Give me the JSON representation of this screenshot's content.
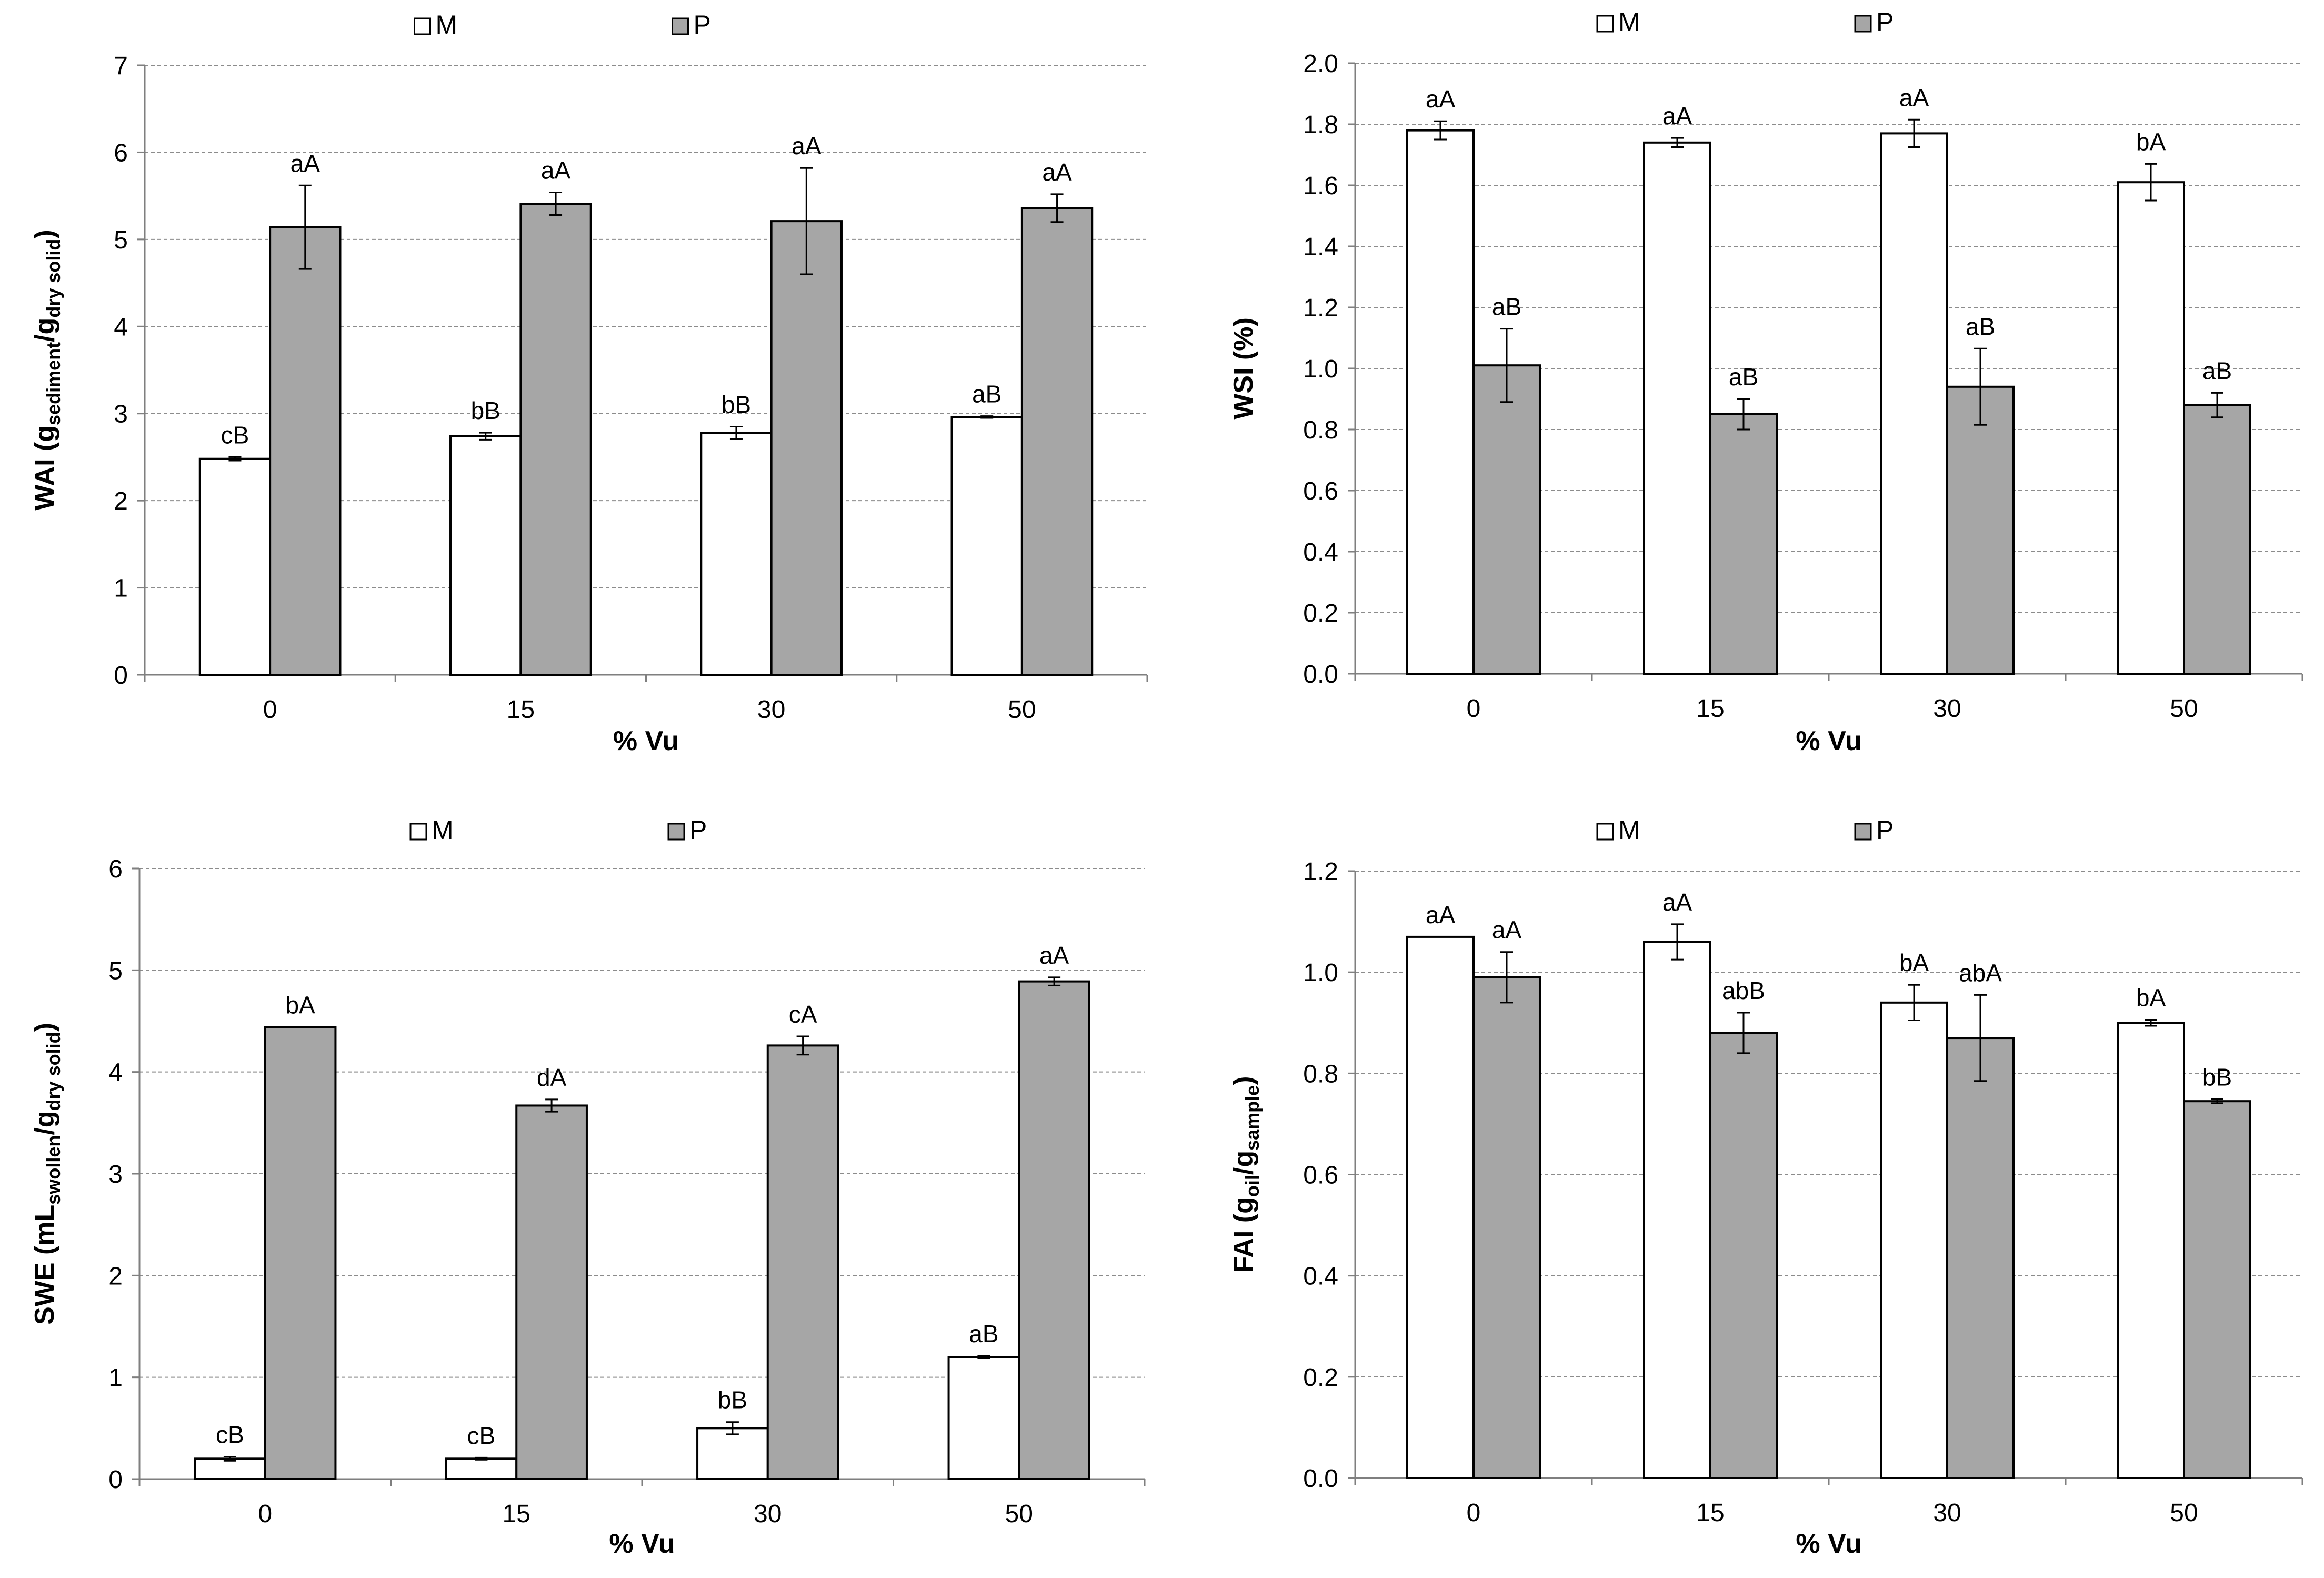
{
  "chart_data": [
    {
      "type": "bar",
      "title": "",
      "xlabel": "% Vu",
      "ylabel": {
        "main": "WAI (g",
        "sub1": "sediment",
        "mid": "/g",
        "sub2": "dry solid",
        "end": ")"
      },
      "categories": [
        "0",
        "15",
        "30",
        "50"
      ],
      "ylim": [
        0,
        7
      ],
      "ytick_step": 1,
      "ytick_decimals": 0,
      "grid": true,
      "legend_position": "top",
      "series": [
        {
          "name": "M",
          "color": "#ffffff",
          "values": [
            2.48,
            2.74,
            2.78,
            2.96
          ],
          "errors": [
            0.02,
            0.04,
            0.07,
            0.01
          ],
          "letters": [
            "cB",
            "bB",
            "bB",
            "aB"
          ]
        },
        {
          "name": "P",
          "color": "#a6a6a6",
          "values": [
            5.14,
            5.41,
            5.21,
            5.36
          ],
          "errors": [
            0.48,
            0.13,
            0.61,
            0.16
          ],
          "letters": [
            "aA",
            "aA",
            "aA",
            "aA"
          ]
        }
      ]
    },
    {
      "type": "bar",
      "title": "",
      "xlabel": "% Vu",
      "ylabel": {
        "main": "WSI (%)",
        "sub1": "",
        "mid": "",
        "sub2": "",
        "end": ""
      },
      "categories": [
        "0",
        "15",
        "30",
        "50"
      ],
      "ylim": [
        0,
        2.0
      ],
      "ytick_step": 0.2,
      "ytick_decimals": 1,
      "grid": true,
      "legend_position": "top",
      "series": [
        {
          "name": "M",
          "color": "#ffffff",
          "values": [
            1.78,
            1.74,
            1.77,
            1.61
          ],
          "errors": [
            0.03,
            0.015,
            0.045,
            0.06
          ],
          "letters": [
            "aA",
            "aA",
            "aA",
            "bA"
          ]
        },
        {
          "name": "P",
          "color": "#a6a6a6",
          "values": [
            1.01,
            0.85,
            0.94,
            0.88
          ],
          "errors": [
            0.12,
            0.05,
            0.125,
            0.04
          ],
          "letters": [
            "aB",
            "aB",
            "aB",
            "aB"
          ]
        }
      ]
    },
    {
      "type": "bar",
      "title": "",
      "xlabel": "% Vu",
      "ylabel": {
        "main": "SWE (mL",
        "sub1": "swollen",
        "mid": "/g",
        "sub2": "dry solid",
        "end": ")"
      },
      "categories": [
        "0",
        "15",
        "30",
        "50"
      ],
      "ylim": [
        0,
        6
      ],
      "ytick_step": 1,
      "ytick_decimals": 0,
      "grid": true,
      "legend_position": "top",
      "series": [
        {
          "name": "M",
          "color": "#ffffff",
          "values": [
            0.2,
            0.2,
            0.5,
            1.2
          ],
          "errors": [
            0.02,
            0.01,
            0.06,
            0.01
          ],
          "letters": [
            "cB",
            "cB",
            "bB",
            "aB"
          ]
        },
        {
          "name": "P",
          "color": "#a6a6a6",
          "values": [
            4.44,
            3.67,
            4.26,
            4.89
          ],
          "errors": [
            0.0,
            0.06,
            0.09,
            0.04
          ],
          "letters": [
            "bA",
            "dA",
            "cA",
            "aA"
          ]
        }
      ]
    },
    {
      "type": "bar",
      "title": "",
      "xlabel": "% Vu",
      "ylabel": {
        "main": "FAI (g",
        "sub1": "oil",
        "mid": "/g",
        "sub2": "sample",
        "end": ")"
      },
      "categories": [
        "0",
        "15",
        "30",
        "50"
      ],
      "ylim": [
        0,
        1.2
      ],
      "ytick_step": 0.2,
      "ytick_decimals": 1,
      "grid": true,
      "legend_position": "top",
      "series": [
        {
          "name": "M",
          "color": "#ffffff",
          "values": [
            1.07,
            1.06,
            0.94,
            0.9
          ],
          "errors": [
            0.0,
            0.035,
            0.035,
            0.006
          ],
          "letters": [
            "aA",
            "aA",
            "bA",
            "bA"
          ]
        },
        {
          "name": "P",
          "color": "#a6a6a6",
          "values": [
            0.99,
            0.88,
            0.87,
            0.745
          ],
          "errors": [
            0.05,
            0.04,
            0.085,
            0.004
          ],
          "letters": [
            "aA",
            "abB",
            "abA",
            "bB"
          ]
        }
      ]
    }
  ]
}
